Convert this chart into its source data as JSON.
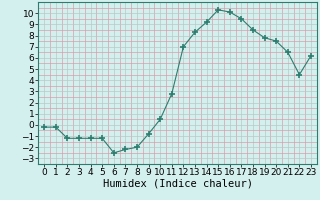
{
  "x": [
    0,
    1,
    2,
    3,
    4,
    5,
    6,
    7,
    8,
    9,
    10,
    11,
    12,
    13,
    14,
    15,
    16,
    17,
    18,
    19,
    20,
    21,
    22,
    23
  ],
  "y": [
    -0.2,
    -0.2,
    -1.2,
    -1.2,
    -1.2,
    -1.2,
    -2.5,
    -2.2,
    -2.0,
    -0.8,
    0.5,
    2.8,
    7.0,
    8.3,
    9.2,
    10.3,
    10.1,
    9.5,
    8.5,
    7.8,
    7.5,
    6.5,
    4.5,
    6.2
  ],
  "line_color": "#2d7d6f",
  "marker": "+",
  "marker_size": 4,
  "bg_color": "#d4f0ee",
  "grid_major_color": "#b8c8c8",
  "grid_minor_color": "#d4a0a8",
  "xlabel": "Humidex (Indice chaleur)",
  "ylim": [
    -3.5,
    11
  ],
  "xlim": [
    -0.5,
    23.5
  ],
  "yticks": [
    -3,
    -2,
    -1,
    0,
    1,
    2,
    3,
    4,
    5,
    6,
    7,
    8,
    9,
    10
  ],
  "xticks": [
    0,
    1,
    2,
    3,
    4,
    5,
    6,
    7,
    8,
    9,
    10,
    11,
    12,
    13,
    14,
    15,
    16,
    17,
    18,
    19,
    20,
    21,
    22,
    23
  ],
  "xlabel_fontsize": 7.5,
  "tick_fontsize": 6.5
}
